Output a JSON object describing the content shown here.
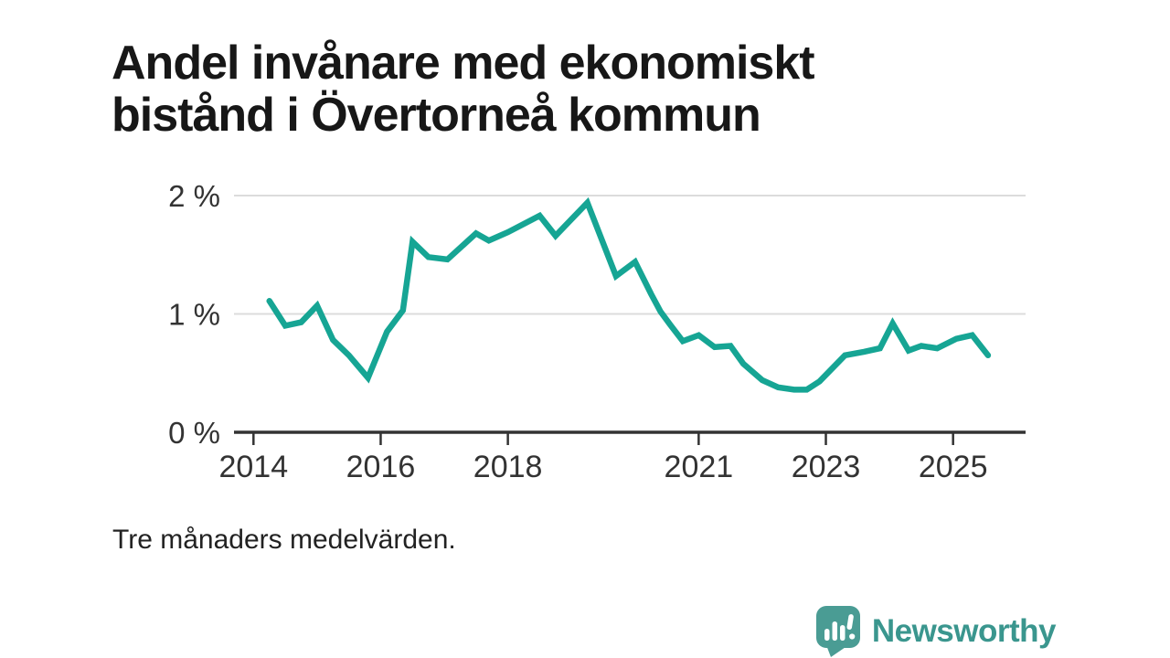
{
  "title": {
    "line1": "Andel invånare med ekonomiskt",
    "line2": "bistånd i Övertorneå kommun"
  },
  "footnote": "Tre månaders medelvärden.",
  "branding": {
    "name": "Newsworthy",
    "icon": "speech-bubble-bar-chart-icon",
    "text_color": "#3A968E",
    "icon_color": "#4A9C94"
  },
  "colors": {
    "line": "#16A594",
    "grid": "#DCDCDC",
    "axis": "#333333",
    "tick_text": "#333333",
    "title_text": "#171717"
  },
  "chart_data": {
    "type": "line",
    "title": "Andel invånare med ekonomiskt bistånd i Övertorneå kommun",
    "subtitle": "Tre månaders medelvärden.",
    "unit": "%",
    "xlabel": "",
    "ylabel": "",
    "grid": "horizontal",
    "legend": "none",
    "xlim": [
      2013.78,
      2026.14
    ],
    "ylim": [
      0,
      2.18
    ],
    "x_ticks": [
      {
        "value": 2014,
        "label": "2014"
      },
      {
        "value": 2016,
        "label": "2016"
      },
      {
        "value": 2018,
        "label": "2018"
      },
      {
        "value": 2021,
        "label": "2021"
      },
      {
        "value": 2023,
        "label": "2023"
      },
      {
        "value": 2025,
        "label": "2025"
      }
    ],
    "y_ticks": [
      {
        "value": 0,
        "label": "0 %"
      },
      {
        "value": 1,
        "label": "1 %"
      },
      {
        "value": 2,
        "label": "2 %"
      }
    ],
    "series": [
      {
        "name": "Andel invånare med ekonomiskt bistånd",
        "points": [
          [
            2014.25,
            1.11
          ],
          [
            2014.5,
            0.9
          ],
          [
            2014.75,
            0.93
          ],
          [
            2015.0,
            1.07
          ],
          [
            2015.25,
            0.78
          ],
          [
            2015.5,
            0.65
          ],
          [
            2015.8,
            0.46
          ],
          [
            2016.1,
            0.85
          ],
          [
            2016.35,
            1.03
          ],
          [
            2016.5,
            1.61
          ],
          [
            2016.75,
            1.48
          ],
          [
            2017.05,
            1.46
          ],
          [
            2017.5,
            1.68
          ],
          [
            2017.7,
            1.62
          ],
          [
            2018.0,
            1.69
          ],
          [
            2018.5,
            1.83
          ],
          [
            2018.75,
            1.66
          ],
          [
            2019.0,
            1.8
          ],
          [
            2019.25,
            1.94
          ],
          [
            2019.7,
            1.32
          ],
          [
            2020.0,
            1.44
          ],
          [
            2020.25,
            1.17
          ],
          [
            2020.4,
            1.02
          ],
          [
            2020.55,
            0.91
          ],
          [
            2020.75,
            0.77
          ],
          [
            2021.0,
            0.82
          ],
          [
            2021.25,
            0.72
          ],
          [
            2021.5,
            0.73
          ],
          [
            2021.7,
            0.58
          ],
          [
            2022.0,
            0.44
          ],
          [
            2022.25,
            0.38
          ],
          [
            2022.5,
            0.36
          ],
          [
            2022.7,
            0.36
          ],
          [
            2022.9,
            0.43
          ],
          [
            2023.3,
            0.65
          ],
          [
            2023.6,
            0.68
          ],
          [
            2023.85,
            0.71
          ],
          [
            2024.05,
            0.92
          ],
          [
            2024.3,
            0.69
          ],
          [
            2024.5,
            0.73
          ],
          [
            2024.75,
            0.71
          ],
          [
            2025.05,
            0.79
          ],
          [
            2025.3,
            0.82
          ],
          [
            2025.55,
            0.65
          ]
        ]
      }
    ]
  }
}
